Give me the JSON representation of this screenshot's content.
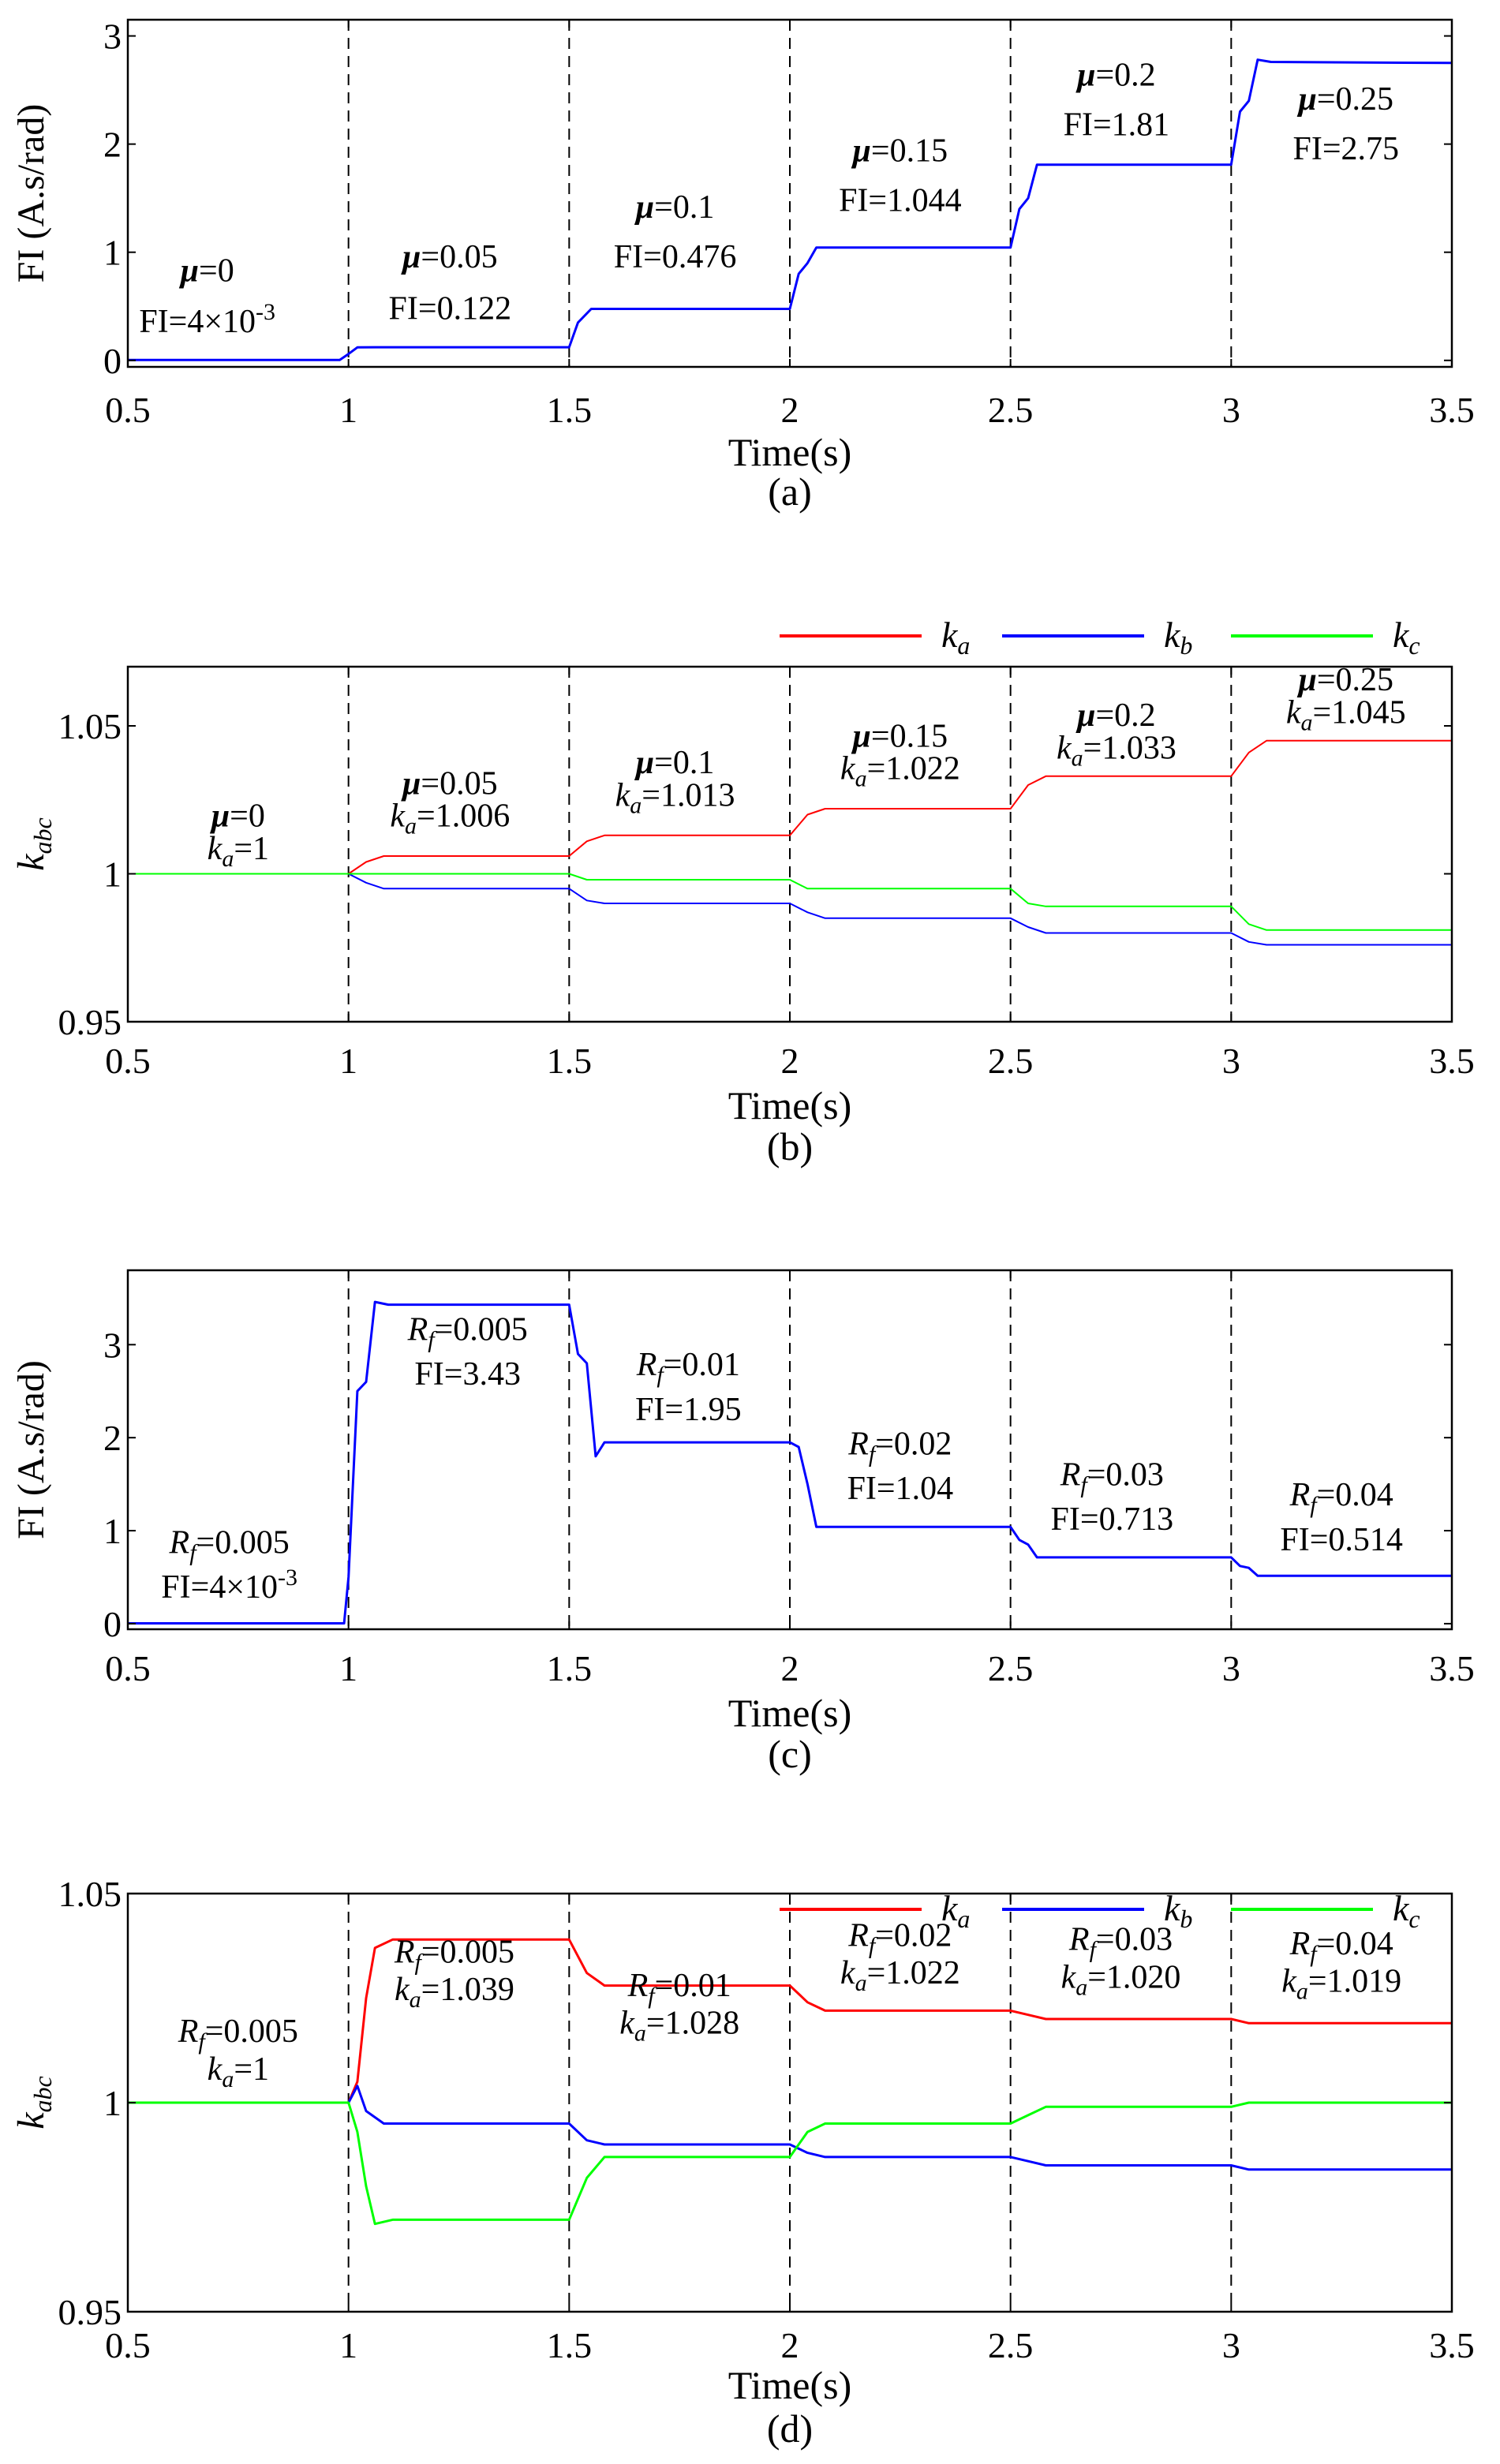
{
  "chart_data": [
    {
      "id": "a",
      "type": "line",
      "ylabel": "FI (A.s/rad)",
      "xlabel": "Time(s)",
      "caption": "(a)",
      "xlim": [
        0.5,
        3.5
      ],
      "ylim": [
        -0.06,
        3.15
      ],
      "xticks": [
        0.5,
        1,
        1.5,
        2,
        2.5,
        3,
        3.5
      ],
      "xtick_labels": [
        "0.5",
        "1",
        "1.5",
        "2",
        "2.5",
        "3",
        "3.5"
      ],
      "yticks": [
        0,
        1,
        2,
        3
      ],
      "ytick_labels": [
        "0",
        "1",
        "2",
        "3"
      ],
      "vlines": [
        1,
        1.5,
        2,
        2.5,
        3
      ],
      "series": [
        {
          "name": "FI",
          "color": "#0000ff",
          "width": 3,
          "points": [
            [
              0.5,
              0.004
            ],
            [
              0.98,
              0.004
            ],
            [
              1.0,
              0.06
            ],
            [
              1.02,
              0.12
            ],
            [
              1.06,
              0.122
            ],
            [
              1.5,
              0.122
            ],
            [
              1.52,
              0.35
            ],
            [
              1.55,
              0.476
            ],
            [
              2.0,
              0.476
            ],
            [
              2.02,
              0.8
            ],
            [
              2.04,
              0.9
            ],
            [
              2.06,
              1.044
            ],
            [
              2.5,
              1.044
            ],
            [
              2.52,
              1.4
            ],
            [
              2.54,
              1.5
            ],
            [
              2.56,
              1.81
            ],
            [
              3.0,
              1.81
            ],
            [
              3.02,
              2.3
            ],
            [
              3.04,
              2.4
            ],
            [
              3.06,
              2.78
            ],
            [
              3.09,
              2.76
            ],
            [
              3.5,
              2.75
            ]
          ]
        }
      ],
      "annotations": [
        {
          "sym": "μ",
          "eq": "=0",
          "val": "FI=4×10",
          "sup": "-3",
          "x": 0.68,
          "y1": 0.73,
          "y2": 0.26
        },
        {
          "sym": "μ",
          "eq": "=0.05",
          "val": "FI=0.122",
          "x": 1.23,
          "y1": 0.86,
          "y2": 0.38
        },
        {
          "sym": "μ",
          "eq": "=0.1",
          "val": "FI=0.476",
          "x": 1.74,
          "y1": 1.32,
          "y2": 0.86
        },
        {
          "sym": "μ",
          "eq": "=0.15",
          "val": "FI=1.044",
          "x": 2.25,
          "y1": 1.84,
          "y2": 1.38
        },
        {
          "sym": "μ",
          "eq": "=0.2",
          "val": "FI=1.81",
          "x": 2.74,
          "y1": 2.54,
          "y2": 2.08
        },
        {
          "sym": "μ",
          "eq": "=0.25",
          "val": "FI=2.75",
          "x": 3.26,
          "y1": 2.32,
          "y2": 1.86
        }
      ]
    },
    {
      "id": "b",
      "type": "line",
      "ylabel": "k",
      "ylabel_sub": "abc",
      "xlabel": "Time(s)",
      "caption": "(b)",
      "xlim": [
        0.5,
        3.5
      ],
      "ylim": [
        0.95,
        1.07
      ],
      "xticks": [
        0.5,
        1,
        1.5,
        2,
        2.5,
        3,
        3.5
      ],
      "xtick_labels": [
        "0.5",
        "1",
        "1.5",
        "2",
        "2.5",
        "3",
        "3.5"
      ],
      "yticks": [
        0.95,
        1,
        1.05
      ],
      "ytick_labels": [
        "0.95",
        "1",
        "1.05"
      ],
      "vlines": [
        1,
        1.5,
        2,
        2.5,
        3
      ],
      "legend": [
        {
          "label": "k",
          "sub": "a",
          "color": "#ff0000"
        },
        {
          "label": "k",
          "sub": "b",
          "color": "#0000ff"
        },
        {
          "label": "k",
          "sub": "c",
          "color": "#00ff00"
        }
      ],
      "series": [
        {
          "name": "ka",
          "color": "#ff0000",
          "width": 2,
          "points": [
            [
              0.5,
              1.0
            ],
            [
              1.0,
              1.0
            ],
            [
              1.04,
              1.004
            ],
            [
              1.08,
              1.006
            ],
            [
              1.5,
              1.006
            ],
            [
              1.54,
              1.011
            ],
            [
              1.58,
              1.013
            ],
            [
              2.0,
              1.013
            ],
            [
              2.04,
              1.02
            ],
            [
              2.08,
              1.022
            ],
            [
              2.5,
              1.022
            ],
            [
              2.54,
              1.03
            ],
            [
              2.58,
              1.033
            ],
            [
              3.0,
              1.033
            ],
            [
              3.04,
              1.041
            ],
            [
              3.08,
              1.045
            ],
            [
              3.5,
              1.045
            ]
          ]
        },
        {
          "name": "kb",
          "color": "#0000ff",
          "width": 2,
          "points": [
            [
              0.5,
              1.0
            ],
            [
              1.0,
              1.0
            ],
            [
              1.04,
              0.997
            ],
            [
              1.08,
              0.995
            ],
            [
              1.5,
              0.995
            ],
            [
              1.54,
              0.991
            ],
            [
              1.58,
              0.99
            ],
            [
              2.0,
              0.99
            ],
            [
              2.04,
              0.987
            ],
            [
              2.08,
              0.985
            ],
            [
              2.5,
              0.985
            ],
            [
              2.54,
              0.982
            ],
            [
              2.58,
              0.98
            ],
            [
              3.0,
              0.98
            ],
            [
              3.04,
              0.977
            ],
            [
              3.08,
              0.976
            ],
            [
              3.5,
              0.976
            ]
          ]
        },
        {
          "name": "kc",
          "color": "#00ff00",
          "width": 2,
          "points": [
            [
              0.5,
              1.0
            ],
            [
              1.0,
              1.0
            ],
            [
              1.04,
              1.0
            ],
            [
              1.08,
              1.0
            ],
            [
              1.5,
              1.0
            ],
            [
              1.54,
              0.998
            ],
            [
              1.58,
              0.998
            ],
            [
              2.0,
              0.998
            ],
            [
              2.04,
              0.995
            ],
            [
              2.08,
              0.995
            ],
            [
              2.5,
              0.995
            ],
            [
              2.54,
              0.99
            ],
            [
              2.58,
              0.989
            ],
            [
              3.0,
              0.989
            ],
            [
              3.04,
              0.983
            ],
            [
              3.08,
              0.981
            ],
            [
              3.5,
              0.981
            ]
          ]
        }
      ],
      "annotations": [
        {
          "sym": "μ",
          "eq": "=0",
          "sym2": "k",
          "sub2": "a",
          "val": "=1",
          "x": 0.75,
          "y1": 1.016,
          "y2": 1.005
        },
        {
          "sym": "μ",
          "eq": "=0.05",
          "sym2": "k",
          "sub2": "a",
          "val": "=1.006",
          "x": 1.23,
          "y1": 1.027,
          "y2": 1.016
        },
        {
          "sym": "μ",
          "eq": "=0.1",
          "sym2": "k",
          "sub2": "a",
          "val": "=1.013",
          "x": 1.74,
          "y1": 1.034,
          "y2": 1.023
        },
        {
          "sym": "μ",
          "eq": "=0.15",
          "sym2": "k",
          "sub2": "a",
          "val": "=1.022",
          "x": 2.25,
          "y1": 1.043,
          "y2": 1.032
        },
        {
          "sym": "μ",
          "eq": "=0.2",
          "sym2": "k",
          "sub2": "a",
          "val": "=1.033",
          "x": 2.74,
          "y1": 1.05,
          "y2": 1.039
        },
        {
          "sym": "μ",
          "eq": "=0.25",
          "sym2": "k",
          "sub2": "a",
          "val": "=1.045",
          "x": 3.26,
          "y1": 1.062,
          "y2": 1.051
        }
      ]
    },
    {
      "id": "c",
      "type": "line",
      "ylabel": "FI (A.s/rad)",
      "xlabel": "Time(s)",
      "caption": "(c)",
      "xlim": [
        0.5,
        3.5
      ],
      "ylim": [
        -0.06,
        3.8
      ],
      "xticks": [
        0.5,
        1,
        1.5,
        2,
        2.5,
        3,
        3.5
      ],
      "xtick_labels": [
        "0.5",
        "1",
        "1.5",
        "2",
        "2.5",
        "3",
        "3.5"
      ],
      "yticks": [
        0,
        1,
        2,
        3
      ],
      "ytick_labels": [
        "0",
        "1",
        "2",
        "3"
      ],
      "vlines": [
        1,
        1.5,
        2,
        2.5,
        3
      ],
      "series": [
        {
          "name": "FI",
          "color": "#0000ff",
          "width": 3,
          "points": [
            [
              0.5,
              0.004
            ],
            [
              0.99,
              0.004
            ],
            [
              1.0,
              0.5
            ],
            [
              1.02,
              2.5
            ],
            [
              1.04,
              2.6
            ],
            [
              1.06,
              3.46
            ],
            [
              1.09,
              3.43
            ],
            [
              1.5,
              3.43
            ],
            [
              1.52,
              2.9
            ],
            [
              1.54,
              2.8
            ],
            [
              1.56,
              1.8
            ],
            [
              1.58,
              1.95
            ],
            [
              2.0,
              1.95
            ],
            [
              2.02,
              1.9
            ],
            [
              2.04,
              1.5
            ],
            [
              2.06,
              1.04
            ],
            [
              2.5,
              1.04
            ],
            [
              2.52,
              0.9
            ],
            [
              2.54,
              0.85
            ],
            [
              2.56,
              0.713
            ],
            [
              3.0,
              0.713
            ],
            [
              3.02,
              0.62
            ],
            [
              3.04,
              0.6
            ],
            [
              3.06,
              0.514
            ],
            [
              3.5,
              0.514
            ]
          ]
        }
      ],
      "annotations": [
        {
          "sym": "R",
          "sub": "f",
          "eq": "=0.005",
          "val": "FI=4×10",
          "sup": "-3",
          "x": 0.73,
          "y1": 0.76,
          "y2": 0.28
        },
        {
          "sym": "R",
          "sub": "f",
          "eq": "=0.005",
          "val": "FI=3.43",
          "x": 1.27,
          "y1": 3.05,
          "y2": 2.57
        },
        {
          "sym": "R",
          "sub": "f",
          "eq": "=0.01",
          "val": "FI=1.95",
          "x": 1.77,
          "y1": 2.67,
          "y2": 2.19
        },
        {
          "sym": "R",
          "sub": "f",
          "eq": "=0.02",
          "val": "FI=1.04",
          "x": 2.25,
          "y1": 1.82,
          "y2": 1.34
        },
        {
          "sym": "R",
          "sub": "f",
          "eq": "=0.03",
          "val": "FI=0.713",
          "x": 2.73,
          "y1": 1.49,
          "y2": 1.01
        },
        {
          "sym": "R",
          "sub": "f",
          "eq": "=0.04",
          "val": "FI=0.514",
          "x": 3.25,
          "y1": 1.27,
          "y2": 0.79
        }
      ]
    },
    {
      "id": "d",
      "type": "line",
      "ylabel": "k",
      "ylabel_sub": "abc",
      "xlabel": "Time(s)",
      "caption": "(d)",
      "xlim": [
        0.5,
        3.5
      ],
      "ylim": [
        0.95,
        1.05
      ],
      "xticks": [
        0.5,
        1,
        1.5,
        2,
        2.5,
        3,
        3.5
      ],
      "xtick_labels": [
        "0.5",
        "1",
        "1.5",
        "2",
        "2.5",
        "3",
        "3.5"
      ],
      "yticks": [
        0.95,
        1,
        1.05
      ],
      "ytick_labels": [
        "0.95",
        "1",
        "1.05"
      ],
      "vlines": [
        1,
        1.5,
        2,
        2.5,
        3
      ],
      "legend": [
        {
          "label": "k",
          "sub": "a",
          "color": "#ff0000"
        },
        {
          "label": "k",
          "sub": "b",
          "color": "#0000ff"
        },
        {
          "label": "k",
          "sub": "c",
          "color": "#00ff00"
        }
      ],
      "series": [
        {
          "name": "ka",
          "color": "#ff0000",
          "width": 3,
          "points": [
            [
              0.5,
              1.0
            ],
            [
              1.0,
              1.0
            ],
            [
              1.02,
              1.005
            ],
            [
              1.04,
              1.025
            ],
            [
              1.06,
              1.037
            ],
            [
              1.1,
              1.039
            ],
            [
              1.5,
              1.039
            ],
            [
              1.54,
              1.031
            ],
            [
              1.58,
              1.028
            ],
            [
              2.0,
              1.028
            ],
            [
              2.04,
              1.024
            ],
            [
              2.08,
              1.022
            ],
            [
              2.5,
              1.022
            ],
            [
              2.54,
              1.021
            ],
            [
              2.58,
              1.02
            ],
            [
              3.0,
              1.02
            ],
            [
              3.04,
              1.019
            ],
            [
              3.08,
              1.019
            ],
            [
              3.5,
              1.019
            ]
          ]
        },
        {
          "name": "kb",
          "color": "#0000ff",
          "width": 3,
          "points": [
            [
              0.5,
              1.0
            ],
            [
              1.0,
              1.0
            ],
            [
              1.02,
              1.004
            ],
            [
              1.04,
              0.998
            ],
            [
              1.08,
              0.995
            ],
            [
              1.5,
              0.995
            ],
            [
              1.54,
              0.991
            ],
            [
              1.58,
              0.99
            ],
            [
              2.0,
              0.99
            ],
            [
              2.04,
              0.988
            ],
            [
              2.08,
              0.987
            ],
            [
              2.5,
              0.987
            ],
            [
              2.54,
              0.986
            ],
            [
              2.58,
              0.985
            ],
            [
              3.0,
              0.985
            ],
            [
              3.04,
              0.984
            ],
            [
              3.08,
              0.984
            ],
            [
              3.5,
              0.984
            ]
          ]
        },
        {
          "name": "kc",
          "color": "#00ff00",
          "width": 3,
          "points": [
            [
              0.5,
              1.0
            ],
            [
              1.0,
              1.0
            ],
            [
              1.02,
              0.993
            ],
            [
              1.04,
              0.98
            ],
            [
              1.06,
              0.971
            ],
            [
              1.1,
              0.972
            ],
            [
              1.5,
              0.972
            ],
            [
              1.54,
              0.982
            ],
            [
              1.58,
              0.987
            ],
            [
              2.0,
              0.987
            ],
            [
              2.04,
              0.993
            ],
            [
              2.08,
              0.995
            ],
            [
              2.5,
              0.995
            ],
            [
              2.54,
              0.997
            ],
            [
              2.58,
              0.999
            ],
            [
              3.0,
              0.999
            ],
            [
              3.04,
              1.0
            ],
            [
              3.08,
              1.0
            ],
            [
              3.5,
              1.0
            ]
          ]
        }
      ],
      "annotations": [
        {
          "sym": "R",
          "sub": "f",
          "eq": "=0.005",
          "sym2": "k",
          "sub2": "a",
          "val": "=1",
          "x": 0.75,
          "y1": 1.0145,
          "y2": 1.0055
        },
        {
          "sym": "R",
          "sub": "f",
          "eq": "=0.005",
          "sym2": "k",
          "sub2": "a",
          "val": "=1.039",
          "x": 1.24,
          "y1": 1.0335,
          "y2": 1.0245
        },
        {
          "sym": "R",
          "sub": "f",
          "eq": "=0.01",
          "sym2": "k",
          "sub2": "a",
          "val": "=1.028",
          "x": 1.75,
          "y1": 1.0255,
          "y2": 1.0165
        },
        {
          "sym": "R",
          "sub": "f",
          "eq": "=0.02",
          "sym2": "k",
          "sub2": "a",
          "val": "=1.022",
          "x": 2.25,
          "y1": 1.0375,
          "y2": 1.0285
        },
        {
          "sym": "R",
          "sub": "f",
          "eq": "=0.03",
          "sym2": "k",
          "sub2": "a",
          "val": "=1.020",
          "x": 2.75,
          "y1": 1.0365,
          "y2": 1.0275
        },
        {
          "sym": "R",
          "sub": "f",
          "eq": "=0.04",
          "sym2": "k",
          "sub2": "a",
          "val": "=1.019",
          "x": 3.25,
          "y1": 1.0355,
          "y2": 1.0265
        }
      ]
    }
  ]
}
